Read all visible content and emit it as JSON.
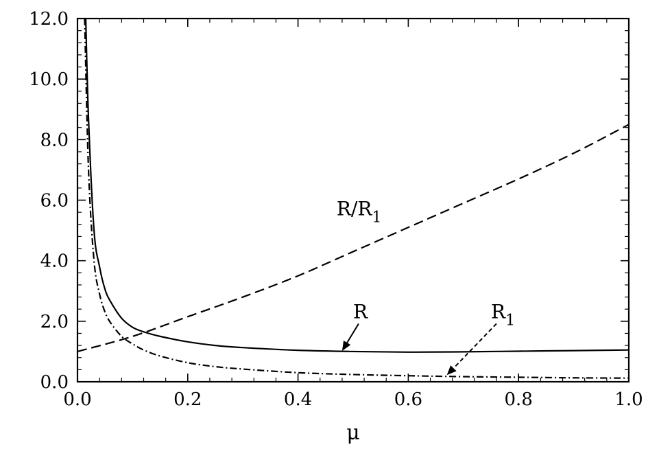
{
  "chart_data": {
    "type": "line",
    "xlabel": "μ",
    "ylabel": "",
    "xlim": [
      0.0,
      1.0
    ],
    "ylim": [
      0.0,
      12.0
    ],
    "x_ticks": [
      0.0,
      0.2,
      0.4,
      0.6,
      0.8,
      1.0
    ],
    "x_tick_labels": [
      "0.0",
      "0.2",
      "0.4",
      "0.6",
      "0.8",
      "1.0"
    ],
    "y_ticks": [
      0.0,
      2.0,
      4.0,
      6.0,
      8.0,
      10.0,
      12.0
    ],
    "y_tick_labels": [
      "0.0",
      "2.0",
      "4.0",
      "6.0",
      "8.0",
      "10.0",
      "12.0"
    ],
    "grid": false,
    "series": [
      {
        "name": "R",
        "style": "solid",
        "x": [
          0.015,
          0.02,
          0.03,
          0.04,
          0.05,
          0.06,
          0.08,
          0.1,
          0.12,
          0.15,
          0.2,
          0.25,
          0.3,
          0.4,
          0.5,
          0.6,
          0.7,
          0.8,
          0.9,
          1.0
        ],
        "y": [
          12.0,
          8.7,
          5.0,
          3.8,
          3.05,
          2.65,
          2.1,
          1.8,
          1.65,
          1.5,
          1.32,
          1.2,
          1.13,
          1.04,
          1.0,
          0.98,
          0.99,
          1.01,
          1.03,
          1.05
        ]
      },
      {
        "name": "R₁",
        "style": "dash-dot",
        "x": [
          0.013,
          0.02,
          0.03,
          0.04,
          0.05,
          0.06,
          0.08,
          0.1,
          0.12,
          0.15,
          0.2,
          0.25,
          0.3,
          0.4,
          0.5,
          0.6,
          0.7,
          0.8,
          0.9,
          1.0
        ],
        "y": [
          12.0,
          7.0,
          4.0,
          2.9,
          2.3,
          1.95,
          1.5,
          1.25,
          1.05,
          0.85,
          0.63,
          0.5,
          0.42,
          0.3,
          0.24,
          0.2,
          0.17,
          0.15,
          0.13,
          0.12
        ]
      },
      {
        "name": "R/R₁",
        "style": "dashed",
        "x": [
          0.0,
          0.1,
          0.2,
          0.3,
          0.4,
          0.5,
          0.6,
          0.7,
          0.8,
          0.9,
          1.0
        ],
        "y": [
          1.0,
          1.5,
          2.15,
          2.8,
          3.5,
          4.3,
          5.1,
          5.9,
          6.7,
          7.55,
          8.5
        ]
      }
    ],
    "annotations": [
      {
        "id": "R",
        "main": "R",
        "sub": "",
        "x": 0.5,
        "y": 2.1,
        "arrow_to": [
          0.48,
          1.02
        ],
        "arrow_style": "solid"
      },
      {
        "id": "R1",
        "main": "R",
        "sub": "1",
        "x": 0.75,
        "y": 2.1,
        "arrow_to": [
          0.67,
          0.22
        ],
        "arrow_style": "dashed"
      },
      {
        "id": "RR1",
        "main": "R/R",
        "sub": "1",
        "x": 0.47,
        "y": 5.5,
        "arrow_to": null,
        "arrow_style": ""
      }
    ]
  }
}
